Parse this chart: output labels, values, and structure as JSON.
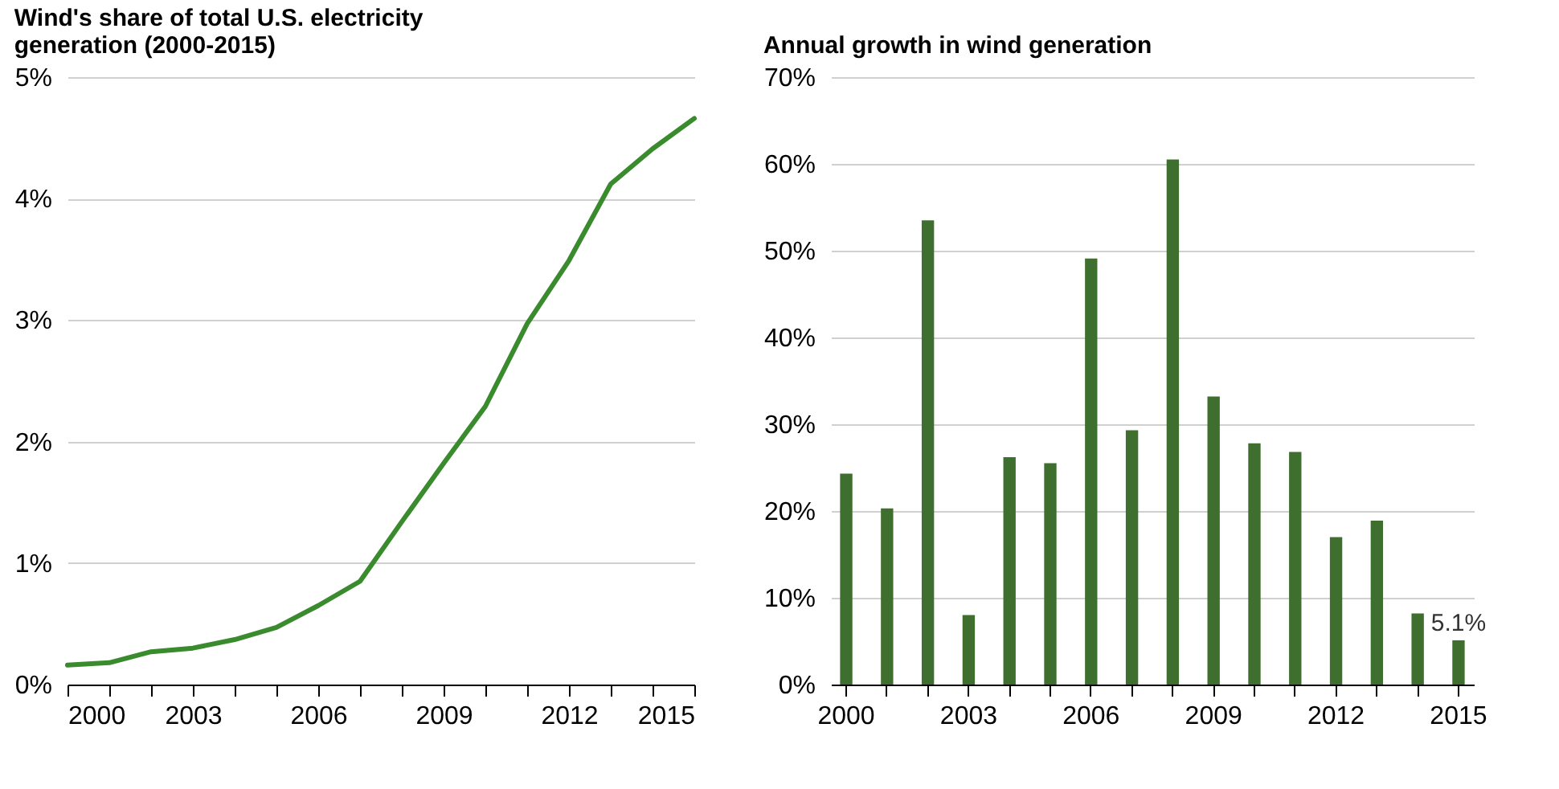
{
  "chart_data": [
    {
      "type": "line",
      "title": "Wind's share of total U.S. electricity generation (2000-2015)",
      "x": [
        2000,
        2001,
        2002,
        2003,
        2004,
        2005,
        2006,
        2007,
        2008,
        2009,
        2010,
        2011,
        2012,
        2013,
        2014,
        2015
      ],
      "series": [
        {
          "color": "#3a8a2e",
          "values": [
            0.16,
            0.18,
            0.27,
            0.3,
            0.37,
            0.47,
            0.65,
            0.85,
            1.34,
            1.82,
            2.29,
            2.97,
            3.49,
            4.12,
            4.41,
            4.66
          ]
        }
      ],
      "xlim": [
        2000,
        2015
      ],
      "xticks": [
        2000,
        {
          "value": 2001,
          "label": null
        },
        {
          "value": 2002,
          "label": null
        },
        2003,
        {
          "value": 2004,
          "label": null
        },
        {
          "value": 2005,
          "label": null
        },
        2006,
        {
          "value": 2007,
          "label": null
        },
        {
          "value": 2008,
          "label": null
        },
        2009,
        {
          "value": 2010,
          "label": null
        },
        {
          "value": 2011,
          "label": null
        },
        2012,
        {
          "value": 2013,
          "label": null
        },
        {
          "value": 2014,
          "label": null
        },
        2015
      ],
      "ylim": [
        0,
        5
      ],
      "yticks": [
        {
          "value": 0,
          "label": "0%"
        },
        {
          "value": 1,
          "label": "1%"
        },
        {
          "value": 2,
          "label": "2%"
        },
        {
          "value": 3,
          "label": "3%"
        },
        {
          "value": 4,
          "label": "4%"
        },
        {
          "value": 5,
          "label": "5%"
        }
      ],
      "grid": "y"
    },
    {
      "type": "bar",
      "title": "Annual growth in wind generation",
      "categories": [
        "2000",
        null,
        null,
        "2003",
        null,
        null,
        "2006",
        null,
        null,
        "2009",
        null,
        null,
        "2012",
        null,
        null,
        "2015"
      ],
      "series": [
        {
          "color": "#3e6f2e",
          "values": [
            24.3,
            20.3,
            53.5,
            8.0,
            26.2,
            25.5,
            49.1,
            29.3,
            60.5,
            33.2,
            27.8,
            26.8,
            17.0,
            18.9,
            8.2,
            5.1
          ],
          "value_labels": [
            null,
            null,
            null,
            null,
            null,
            null,
            null,
            null,
            null,
            null,
            null,
            null,
            null,
            null,
            null,
            "5.1%"
          ]
        }
      ],
      "ylim": [
        0,
        70
      ],
      "yticks": [
        {
          "value": 0,
          "label": "0%"
        },
        {
          "value": 10,
          "label": "10%"
        },
        {
          "value": 20,
          "label": "20%"
        },
        {
          "value": 30,
          "label": "30%"
        },
        {
          "value": 40,
          "label": "40%"
        },
        {
          "value": 50,
          "label": "50%"
        },
        {
          "value": 60,
          "label": "60%"
        },
        {
          "value": 70,
          "label": "70%"
        }
      ],
      "grid": "y"
    }
  ]
}
